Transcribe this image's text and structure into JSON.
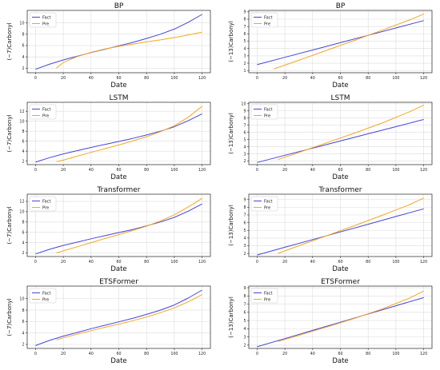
{
  "figure": {
    "background": "#ffffff"
  },
  "colors": {
    "fact": "#4444dd",
    "pre": "#f5a623"
  },
  "chart_data": [
    {
      "type": "line",
      "title": "BP",
      "xlabel": "Date",
      "ylabel": "(−7)Carbonyl",
      "xlim": [
        -6,
        126
      ],
      "ylim": [
        1.2,
        12.2
      ],
      "xticks": [
        0,
        20,
        40,
        60,
        80,
        100,
        120
      ],
      "yticks": [
        2,
        4,
        6,
        8,
        10
      ],
      "grid": true,
      "legend": "top-left",
      "series": [
        {
          "name": "Fact",
          "color": "#4444dd",
          "x": [
            0,
            10,
            20,
            30,
            40,
            50,
            60,
            70,
            80,
            90,
            100,
            110,
            120
          ],
          "y": [
            1.8,
            2.7,
            3.45,
            4.1,
            4.75,
            5.35,
            5.95,
            6.55,
            7.25,
            8.0,
            8.9,
            10.1,
            11.5
          ]
        },
        {
          "name": "Pre",
          "color": "#f5a623",
          "x": [
            15,
            20,
            30,
            40,
            50,
            60,
            70,
            80,
            90,
            100,
            110,
            120
          ],
          "y": [
            2.0,
            3.0,
            4.05,
            4.8,
            5.4,
            5.85,
            6.25,
            6.65,
            7.0,
            7.4,
            7.85,
            8.35
          ]
        }
      ]
    },
    {
      "type": "line",
      "title": "BP",
      "xlabel": "Date",
      "ylabel": "(−13)Carbonyl",
      "xlim": [
        -6,
        126
      ],
      "ylim": [
        0.7,
        9.2
      ],
      "xticks": [
        0,
        20,
        40,
        60,
        80,
        100,
        120
      ],
      "yticks": [
        1,
        2,
        3,
        4,
        5,
        6,
        7,
        8,
        9
      ],
      "grid": true,
      "legend": "top-left",
      "series": [
        {
          "name": "Fact",
          "color": "#4444dd",
          "x": [
            0,
            20,
            40,
            60,
            80,
            100,
            120
          ],
          "y": [
            1.8,
            2.8,
            3.8,
            4.8,
            5.8,
            6.8,
            7.8
          ]
        },
        {
          "name": "Pre",
          "color": "#f5a623",
          "x": [
            12,
            30,
            50,
            70,
            90,
            110,
            120
          ],
          "y": [
            1.2,
            2.4,
            3.75,
            5.1,
            6.5,
            7.9,
            8.7
          ]
        }
      ]
    },
    {
      "type": "line",
      "title": "LSTM",
      "xlabel": "Date",
      "ylabel": "(−7)Carbonyl",
      "xlim": [
        -6,
        126
      ],
      "ylim": [
        1.3,
        13.8
      ],
      "xticks": [
        0,
        20,
        40,
        60,
        80,
        100,
        120
      ],
      "yticks": [
        2,
        4,
        6,
        8,
        10,
        12
      ],
      "grid": true,
      "legend": "top-left",
      "series": [
        {
          "name": "Fact",
          "color": "#4444dd",
          "x": [
            0,
            10,
            20,
            30,
            40,
            50,
            60,
            70,
            80,
            90,
            100,
            110,
            120
          ],
          "y": [
            1.8,
            2.7,
            3.45,
            4.1,
            4.75,
            5.35,
            5.95,
            6.55,
            7.25,
            8.0,
            8.9,
            10.1,
            11.5
          ]
        },
        {
          "name": "Pre",
          "color": "#f5a623",
          "x": [
            15,
            20,
            30,
            40,
            50,
            60,
            70,
            80,
            90,
            100,
            110,
            120
          ],
          "y": [
            1.9,
            2.2,
            3.0,
            3.75,
            4.5,
            5.25,
            6.05,
            6.9,
            7.9,
            9.1,
            10.8,
            13.0
          ]
        }
      ]
    },
    {
      "type": "line",
      "title": "LSTM",
      "xlabel": "Date",
      "ylabel": "(−13)Carbonyl",
      "xlim": [
        -6,
        126
      ],
      "ylim": [
        1.5,
        10.2
      ],
      "xticks": [
        0,
        20,
        40,
        60,
        80,
        100,
        120
      ],
      "yticks": [
        2,
        3,
        4,
        5,
        6,
        7,
        8,
        9,
        10
      ],
      "grid": true,
      "legend": "top-left",
      "series": [
        {
          "name": "Fact",
          "color": "#4444dd",
          "x": [
            0,
            20,
            40,
            60,
            80,
            100,
            120
          ],
          "y": [
            1.8,
            2.8,
            3.8,
            4.8,
            5.8,
            6.8,
            7.8
          ]
        },
        {
          "name": "Pre",
          "color": "#f5a623",
          "x": [
            15,
            30,
            50,
            70,
            90,
            110,
            120
          ],
          "y": [
            2.2,
            3.2,
            4.55,
            5.9,
            7.3,
            8.9,
            9.8
          ]
        }
      ]
    },
    {
      "type": "line",
      "title": "Transformer",
      "xlabel": "Date",
      "ylabel": "(−7)Carbonyl",
      "xlim": [
        -6,
        126
      ],
      "ylim": [
        1.3,
        13.4
      ],
      "xticks": [
        0,
        20,
        40,
        60,
        80,
        100,
        120
      ],
      "yticks": [
        2,
        4,
        6,
        8,
        10,
        12
      ],
      "grid": true,
      "legend": "top-left",
      "series": [
        {
          "name": "Fact",
          "color": "#4444dd",
          "x": [
            0,
            10,
            20,
            30,
            40,
            50,
            60,
            70,
            80,
            90,
            100,
            110,
            120
          ],
          "y": [
            1.8,
            2.7,
            3.45,
            4.1,
            4.75,
            5.35,
            5.95,
            6.55,
            7.25,
            8.0,
            8.9,
            10.1,
            11.5
          ]
        },
        {
          "name": "Pre",
          "color": "#f5a623",
          "x": [
            15,
            20,
            30,
            40,
            50,
            60,
            70,
            80,
            90,
            100,
            110,
            120
          ],
          "y": [
            2.0,
            2.4,
            3.2,
            4.0,
            4.8,
            5.55,
            6.35,
            7.2,
            8.2,
            9.4,
            10.9,
            12.6
          ]
        }
      ]
    },
    {
      "type": "line",
      "title": "Transformer",
      "xlabel": "Date",
      "ylabel": "(−13)Carbonyl",
      "xlim": [
        -6,
        126
      ],
      "ylim": [
        1.6,
        9.7
      ],
      "xticks": [
        0,
        20,
        40,
        60,
        80,
        100,
        120
      ],
      "yticks": [
        2,
        3,
        4,
        5,
        6,
        7,
        8,
        9
      ],
      "grid": true,
      "legend": "top-left",
      "series": [
        {
          "name": "Fact",
          "color": "#4444dd",
          "x": [
            0,
            20,
            40,
            60,
            80,
            100,
            120
          ],
          "y": [
            1.8,
            2.8,
            3.8,
            4.8,
            5.8,
            6.8,
            7.8
          ]
        },
        {
          "name": "Pre",
          "color": "#f5a623",
          "x": [
            15,
            30,
            50,
            70,
            90,
            110,
            120
          ],
          "y": [
            2.0,
            3.0,
            4.3,
            5.6,
            6.95,
            8.35,
            9.2
          ]
        }
      ]
    },
    {
      "type": "line",
      "title": "ETSFormer",
      "xlabel": "Date",
      "ylabel": "(−7)Carbonyl",
      "xlim": [
        -6,
        126
      ],
      "ylim": [
        1.3,
        12.2
      ],
      "xticks": [
        0,
        20,
        40,
        60,
        80,
        100,
        120
      ],
      "yticks": [
        2,
        4,
        6,
        8,
        10
      ],
      "grid": true,
      "legend": "top-left",
      "series": [
        {
          "name": "Fact",
          "color": "#4444dd",
          "x": [
            0,
            10,
            20,
            30,
            40,
            50,
            60,
            70,
            80,
            90,
            100,
            110,
            120
          ],
          "y": [
            1.8,
            2.7,
            3.45,
            4.1,
            4.75,
            5.35,
            5.95,
            6.55,
            7.25,
            8.0,
            8.9,
            10.1,
            11.5
          ]
        },
        {
          "name": "Pre",
          "color": "#f5a623",
          "x": [
            15,
            20,
            30,
            40,
            50,
            60,
            70,
            80,
            90,
            100,
            110,
            120
          ],
          "y": [
            2.8,
            3.15,
            3.8,
            4.4,
            5.0,
            5.55,
            6.15,
            6.8,
            7.55,
            8.4,
            9.45,
            10.7
          ]
        }
      ]
    },
    {
      "type": "line",
      "title": "ETSFormer",
      "xlabel": "Date",
      "ylabel": "(−13)Carbonyl",
      "xlim": [
        -6,
        126
      ],
      "ylim": [
        1.6,
        9.2
      ],
      "xticks": [
        0,
        20,
        40,
        60,
        80,
        100,
        120
      ],
      "yticks": [
        2,
        3,
        4,
        5,
        6,
        7,
        8,
        9
      ],
      "grid": true,
      "legend": "top-left",
      "series": [
        {
          "name": "Fact",
          "color": "#4444dd",
          "x": [
            0,
            20,
            40,
            60,
            80,
            100,
            120
          ],
          "y": [
            1.8,
            2.8,
            3.8,
            4.8,
            5.8,
            6.8,
            7.8
          ]
        },
        {
          "name": "Pre",
          "color": "#f5a623",
          "x": [
            15,
            30,
            50,
            70,
            90,
            110,
            120
          ],
          "y": [
            2.45,
            3.2,
            4.2,
            5.25,
            6.4,
            7.75,
            8.6
          ]
        }
      ]
    }
  ]
}
